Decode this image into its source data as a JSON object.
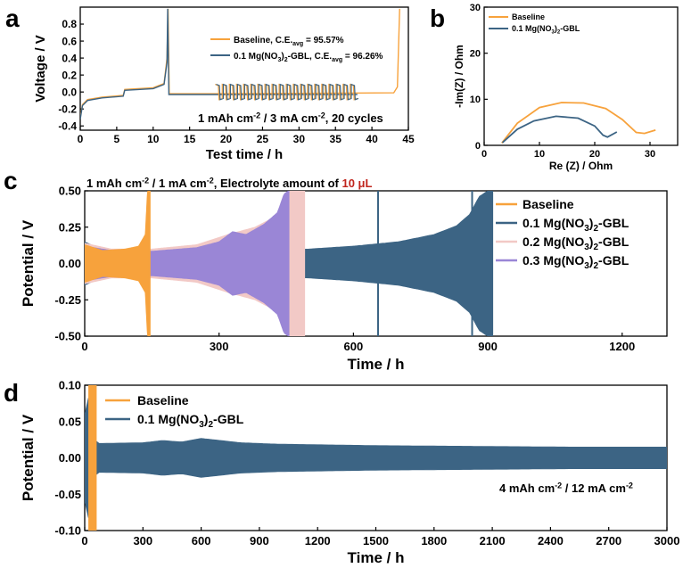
{
  "colors": {
    "orange": "#f7a23c",
    "blue": "#3c6484",
    "pink": "#f2c9c6",
    "purple": "#9a86d6",
    "red_text": "#c0241c",
    "axis": "#000000"
  },
  "chart_data": [
    {
      "panel": "a",
      "type": "line",
      "xlabel": "Test time  / h",
      "ylabel": "Voltage / V",
      "xlim": [
        0,
        45
      ],
      "ylim": [
        -0.45,
        1.0
      ],
      "xticks": [
        "0",
        "5",
        "10",
        "15",
        "20",
        "25",
        "30",
        "35",
        "40",
        "45"
      ],
      "yticks": [
        "-0.4",
        "-0.2",
        "0.0",
        "0.2",
        "0.4",
        "0.6",
        "0.8"
      ],
      "legend": [
        {
          "name": "Baseline, C.E.",
          "sub": "avg",
          "tail": " = 95.57%",
          "color": "orange"
        },
        {
          "name": "0.1 Mg(NO",
          "sub2": "3",
          "mid": ")",
          "sub3": "2",
          "after": "-GBL, C.E.",
          "sub": "avg",
          "tail": " = 96.26%",
          "color": "blue"
        }
      ],
      "annotation": {
        "p1": "1 mAh cm",
        "s1": "-2",
        "p2": " / 3 mA cm",
        "s2": "-2",
        "p3": ", 20 cycles"
      },
      "series": [
        {
          "name": "Baseline",
          "points": [
            [
              0,
              -0.3
            ],
            [
              0.3,
              -0.15
            ],
            [
              1,
              -0.09
            ],
            [
              3,
              -0.06
            ],
            [
              5.9,
              -0.04
            ],
            [
              6.1,
              0.03
            ],
            [
              10,
              0.05
            ],
            [
              11.5,
              0.1
            ],
            [
              11.9,
              0.4
            ],
            [
              12.05,
              0.98
            ],
            [
              12.2,
              -0.02
            ],
            [
              18.5,
              -0.02
            ],
            [
              43,
              -0.01
            ],
            [
              43.5,
              0.06
            ],
            [
              43.8,
              0.98
            ]
          ]
        },
        {
          "name": "0.1 Mg(NO3)2-GBL",
          "points": [
            [
              0,
              -0.32
            ],
            [
              0.3,
              -0.16
            ],
            [
              1,
              -0.1
            ],
            [
              3,
              -0.07
            ],
            [
              5.9,
              -0.05
            ],
            [
              6.1,
              0.02
            ],
            [
              10,
              0.04
            ],
            [
              11.5,
              0.09
            ],
            [
              11.9,
              0.35
            ],
            [
              12.0,
              0.98
            ],
            [
              12.15,
              -0.03
            ],
            [
              18.5,
              -0.03
            ],
            [
              38,
              -0.03
            ]
          ]
        }
      ],
      "cycling_region": {
        "start": 18.5,
        "end": 38,
        "cycles": 20,
        "amplitude": 0.09
      }
    },
    {
      "panel": "b",
      "type": "line",
      "xlabel": "Re (Z) / Ohm",
      "ylabel": "-Im(Z) / Ohm",
      "xlim": [
        0,
        35
      ],
      "ylim": [
        0,
        30
      ],
      "xticks": [
        "0",
        "10",
        "20",
        "30"
      ],
      "yticks": [
        "0",
        "10",
        "20",
        "30"
      ],
      "legend": [
        {
          "name": "Baseline",
          "color": "orange"
        },
        {
          "name": "0.1 Mg(NO",
          "sub2": "3",
          "mid": ")",
          "sub3": "2",
          "after": "-GBL",
          "color": "blue"
        }
      ],
      "series": [
        {
          "name": "Baseline",
          "points": [
            [
              3.2,
              0.5
            ],
            [
              6,
              4.8
            ],
            [
              10,
              8.2
            ],
            [
              14,
              9.3
            ],
            [
              18,
              9.2
            ],
            [
              22,
              8.0
            ],
            [
              25,
              5.6
            ],
            [
              27.5,
              2.8
            ],
            [
              29,
              2.6
            ],
            [
              31,
              3.3
            ]
          ]
        },
        {
          "name": "0.1 Mg(NO3)2-GBL",
          "points": [
            [
              3.3,
              0.6
            ],
            [
              6,
              3.5
            ],
            [
              9,
              5.3
            ],
            [
              13,
              6.3
            ],
            [
              17,
              5.9
            ],
            [
              20,
              4.2
            ],
            [
              21.5,
              2.2
            ],
            [
              22.3,
              1.8
            ],
            [
              24,
              2.9
            ]
          ]
        }
      ]
    },
    {
      "panel": "c",
      "type": "area",
      "title": {
        "p1": "1 mAh cm",
        "s1": "-2",
        "p2": " / 1 mA cm",
        "s2": "-2",
        "p3": ", Electrolyte amount of ",
        "red": "10 μL"
      },
      "xlabel": "Time / h",
      "ylabel": "Potential / V",
      "xlim": [
        0,
        1300
      ],
      "ylim": [
        -0.5,
        0.5
      ],
      "xticks": [
        "0",
        "300",
        "600",
        "900",
        "1200"
      ],
      "yticks": [
        "-0.50",
        "-0.25",
        "0.00",
        "0.25",
        "0.50"
      ],
      "legend": [
        {
          "name": "Baseline",
          "color": "orange"
        },
        {
          "name": "0.1 Mg(NO",
          "sub2": "3",
          "mid": ")",
          "sub3": "2",
          "after": "-GBL",
          "color": "blue"
        },
        {
          "name": "0.2 Mg(NO",
          "sub2": "3",
          "mid": ")",
          "sub3": "2",
          "after": "-GBL",
          "color": "pink"
        },
        {
          "name": "0.3 Mg(NO",
          "sub2": "3",
          "mid": ")",
          "sub3": "2",
          "after": "-GBL",
          "color": "purple"
        }
      ],
      "series": [
        {
          "name": "0.1 Mg(NO3)2-GBL",
          "end_time": 910,
          "envelope": [
            [
              0,
              0.15
            ],
            [
              40,
              0.09
            ],
            [
              150,
              0.085
            ],
            [
              300,
              0.09
            ],
            [
              420,
              0.095
            ],
            [
              500,
              0.1
            ],
            [
              600,
              0.12
            ],
            [
              700,
              0.15
            ],
            [
              780,
              0.2
            ],
            [
              830,
              0.26
            ],
            [
              860,
              0.34
            ],
            [
              880,
              0.46
            ],
            [
              900,
              0.5
            ],
            [
              910,
              0.5
            ]
          ]
        },
        {
          "name": "0.2 Mg(NO3)2-GBL",
          "end_time": 490,
          "envelope": [
            [
              0,
              0.14
            ],
            [
              60,
              0.1
            ],
            [
              150,
              0.1
            ],
            [
              250,
              0.13
            ],
            [
              320,
              0.2
            ],
            [
              380,
              0.25
            ],
            [
              430,
              0.33
            ],
            [
              450,
              0.45
            ],
            [
              455,
              0.5
            ],
            [
              490,
              0.5
            ]
          ]
        },
        {
          "name": "0.3 Mg(NO3)2-GBL",
          "end_time": 455,
          "envelope": [
            [
              0,
              0.12
            ],
            [
              60,
              0.09
            ],
            [
              150,
              0.085
            ],
            [
              250,
              0.11
            ],
            [
              300,
              0.15
            ],
            [
              330,
              0.22
            ],
            [
              360,
              0.2
            ],
            [
              400,
              0.27
            ],
            [
              430,
              0.35
            ],
            [
              445,
              0.48
            ],
            [
              455,
              0.5
            ]
          ]
        },
        {
          "name": "Baseline",
          "end_time": 145,
          "envelope": [
            [
              0,
              0.13
            ],
            [
              40,
              0.09
            ],
            [
              90,
              0.1
            ],
            [
              120,
              0.12
            ],
            [
              135,
              0.2
            ],
            [
              140,
              0.5
            ],
            [
              145,
              0.5
            ]
          ]
        }
      ]
    },
    {
      "panel": "d",
      "type": "area",
      "xlabel": "Time / h",
      "ylabel": "Potential / V",
      "xlim": [
        0,
        3000
      ],
      "ylim": [
        -0.1,
        0.1
      ],
      "xticks": [
        "0",
        "300",
        "600",
        "900",
        "1200",
        "1500",
        "1800",
        "2100",
        "2400",
        "2700",
        "3000"
      ],
      "yticks": [
        "-0.10",
        "-0.05",
        "0.00",
        "0.05",
        "0.10"
      ],
      "legend": [
        {
          "name": "Baseline",
          "color": "orange"
        },
        {
          "name": "0.1 Mg(NO",
          "sub2": "3",
          "mid": ")",
          "sub3": "2",
          "after": "-GBL",
          "color": "blue"
        }
      ],
      "annotation": {
        "p1": "4 mAh cm",
        "s1": "-2",
        "p2": " / 12 mA cm",
        "s2": "-2"
      },
      "series": [
        {
          "name": "0.1 Mg(NO3)2-GBL",
          "end_time": 3000,
          "envelope": [
            [
              0,
              0.06
            ],
            [
              10,
              0.1
            ],
            [
              20,
              0.08
            ],
            [
              40,
              0.04
            ],
            [
              60,
              0.02
            ],
            [
              100,
              0.02
            ],
            [
              300,
              0.021
            ],
            [
              400,
              0.024
            ],
            [
              500,
              0.022
            ],
            [
              600,
              0.027
            ],
            [
              700,
              0.024
            ],
            [
              800,
              0.021
            ],
            [
              1000,
              0.019
            ],
            [
              1500,
              0.017
            ],
            [
              2000,
              0.016
            ],
            [
              2500,
              0.015
            ],
            [
              3000,
              0.015
            ]
          ]
        },
        {
          "name": "Baseline",
          "end_time": 60,
          "envelope": [
            [
              0,
              0.05
            ],
            [
              20,
              0.1
            ],
            [
              60,
              0.1
            ]
          ]
        }
      ]
    }
  ],
  "panel_labels": [
    "a",
    "b",
    "c",
    "d"
  ]
}
